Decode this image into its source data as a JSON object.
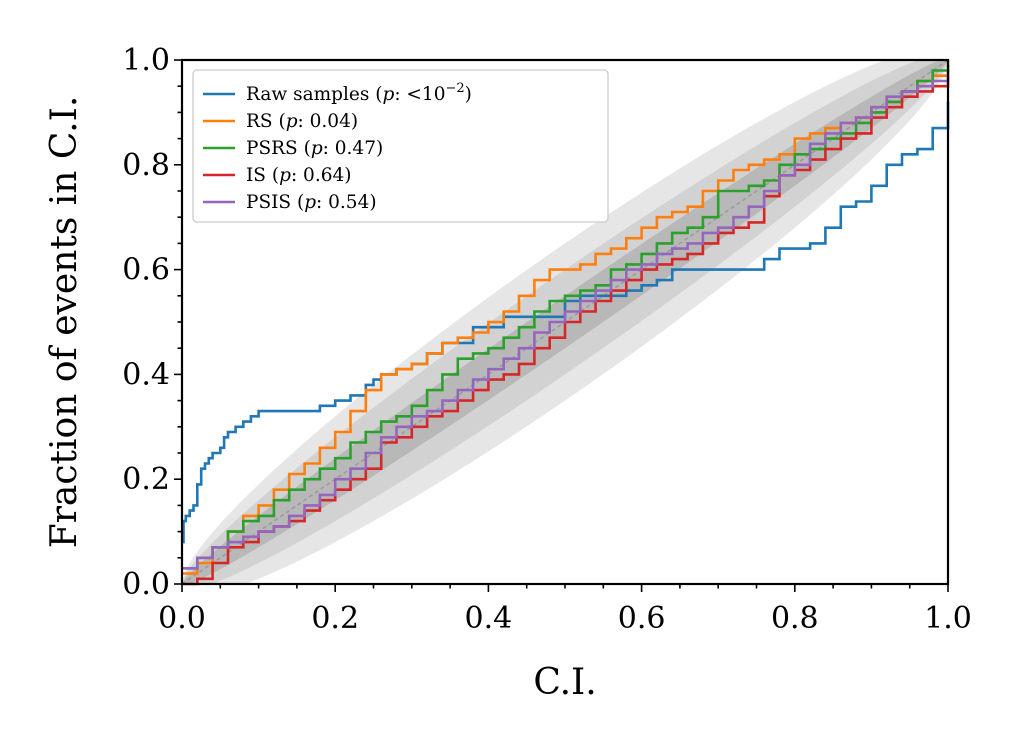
{
  "chart_data": {
    "type": "line",
    "title": "",
    "xlabel": "C.I.",
    "ylabel": "Fraction of events in C.I.",
    "xlim": [
      0,
      1
    ],
    "ylim": [
      0,
      1
    ],
    "xticks": [
      "0.0",
      "0.2",
      "0.4",
      "0.6",
      "0.8",
      "1.0"
    ],
    "yticks": [
      "0.0",
      "0.2",
      "0.4",
      "0.6",
      "0.8",
      "1.0"
    ],
    "legend_position": "top-left",
    "confidence_bands": "grey shaded 1σ/2σ/3σ bands around diagonal",
    "series": [
      {
        "name": "Raw samples (p: <10^-2)",
        "legend_prefix": "Raw samples (",
        "legend_p": "p",
        "legend_mid": ": <10",
        "legend_sup": "−2",
        "legend_suffix": ")",
        "color": "#1f77b4",
        "x": [
          0,
          0.002,
          0.005,
          0.01,
          0.015,
          0.02,
          0.025,
          0.03,
          0.035,
          0.04,
          0.05,
          0.055,
          0.06,
          0.07,
          0.08,
          0.09,
          0.1,
          0.11,
          0.15,
          0.18,
          0.2,
          0.22,
          0.24,
          0.25,
          0.26,
          0.28,
          0.3,
          0.32,
          0.34,
          0.38,
          0.42,
          0.44,
          0.46,
          0.5,
          0.52,
          0.56,
          0.58,
          0.6,
          0.62,
          0.64,
          0.7,
          0.72,
          0.74,
          0.76,
          0.78,
          0.8,
          0.82,
          0.84,
          0.86,
          0.88,
          0.9,
          0.92,
          0.94,
          0.96,
          0.98,
          1.0
        ],
        "y": [
          0.08,
          0.12,
          0.13,
          0.14,
          0.15,
          0.19,
          0.22,
          0.23,
          0.24,
          0.25,
          0.26,
          0.28,
          0.29,
          0.3,
          0.31,
          0.32,
          0.33,
          0.33,
          0.33,
          0.34,
          0.35,
          0.36,
          0.38,
          0.39,
          0.4,
          0.41,
          0.42,
          0.44,
          0.46,
          0.49,
          0.51,
          0.51,
          0.51,
          0.54,
          0.55,
          0.55,
          0.56,
          0.57,
          0.58,
          0.6,
          0.6,
          0.6,
          0.6,
          0.62,
          0.64,
          0.64,
          0.65,
          0.68,
          0.72,
          0.73,
          0.76,
          0.8,
          0.82,
          0.83,
          0.87,
          0.92
        ]
      },
      {
        "name": "RS (p: 0.04)",
        "legend_prefix": "RS (",
        "legend_p": "p",
        "legend_mid": ": 0.04)",
        "legend_sup": "",
        "legend_suffix": "",
        "color": "#ff7f0e",
        "x": [
          0,
          0.02,
          0.04,
          0.06,
          0.08,
          0.1,
          0.12,
          0.14,
          0.16,
          0.18,
          0.2,
          0.22,
          0.24,
          0.26,
          0.28,
          0.3,
          0.32,
          0.34,
          0.36,
          0.38,
          0.4,
          0.42,
          0.44,
          0.46,
          0.48,
          0.5,
          0.52,
          0.54,
          0.56,
          0.58,
          0.6,
          0.62,
          0.64,
          0.66,
          0.68,
          0.7,
          0.72,
          0.74,
          0.76,
          0.78,
          0.8,
          0.82,
          0.84,
          0.86,
          0.88,
          0.9,
          0.92,
          0.94,
          0.96,
          0.98,
          1.0
        ],
        "y": [
          0.02,
          0.04,
          0.07,
          0.1,
          0.13,
          0.15,
          0.18,
          0.21,
          0.23,
          0.26,
          0.29,
          0.33,
          0.37,
          0.4,
          0.41,
          0.42,
          0.44,
          0.46,
          0.47,
          0.48,
          0.5,
          0.52,
          0.55,
          0.58,
          0.6,
          0.6,
          0.61,
          0.63,
          0.64,
          0.66,
          0.68,
          0.7,
          0.71,
          0.72,
          0.75,
          0.77,
          0.79,
          0.8,
          0.81,
          0.82,
          0.85,
          0.86,
          0.87,
          0.88,
          0.89,
          0.91,
          0.92,
          0.94,
          0.96,
          0.97,
          1.0
        ]
      },
      {
        "name": "PSRS (p: 0.47)",
        "legend_prefix": "PSRS (",
        "legend_p": "p",
        "legend_mid": ": 0.47)",
        "legend_sup": "",
        "legend_suffix": "",
        "color": "#2ca02c",
        "x": [
          0,
          0.02,
          0.04,
          0.06,
          0.08,
          0.1,
          0.12,
          0.14,
          0.16,
          0.18,
          0.2,
          0.22,
          0.24,
          0.26,
          0.28,
          0.3,
          0.32,
          0.34,
          0.36,
          0.38,
          0.4,
          0.42,
          0.44,
          0.46,
          0.48,
          0.5,
          0.52,
          0.54,
          0.56,
          0.58,
          0.6,
          0.62,
          0.64,
          0.66,
          0.68,
          0.7,
          0.72,
          0.74,
          0.76,
          0.78,
          0.8,
          0.82,
          0.84,
          0.86,
          0.88,
          0.9,
          0.92,
          0.94,
          0.96,
          0.98,
          1.0
        ],
        "y": [
          0.03,
          0.05,
          0.07,
          0.1,
          0.12,
          0.13,
          0.16,
          0.18,
          0.2,
          0.22,
          0.24,
          0.27,
          0.29,
          0.31,
          0.32,
          0.34,
          0.37,
          0.4,
          0.43,
          0.44,
          0.45,
          0.47,
          0.49,
          0.52,
          0.54,
          0.55,
          0.56,
          0.57,
          0.6,
          0.61,
          0.63,
          0.65,
          0.67,
          0.68,
          0.7,
          0.75,
          0.75,
          0.76,
          0.77,
          0.8,
          0.82,
          0.83,
          0.85,
          0.86,
          0.88,
          0.9,
          0.92,
          0.94,
          0.96,
          0.98,
          0.99
        ]
      },
      {
        "name": "IS (p: 0.64)",
        "legend_prefix": "IS (",
        "legend_p": "p",
        "legend_mid": ": 0.64)",
        "legend_sup": "",
        "legend_suffix": "",
        "color": "#d62728",
        "x": [
          0,
          0.02,
          0.04,
          0.06,
          0.08,
          0.1,
          0.12,
          0.14,
          0.16,
          0.18,
          0.2,
          0.22,
          0.24,
          0.26,
          0.28,
          0.3,
          0.32,
          0.34,
          0.36,
          0.38,
          0.4,
          0.42,
          0.44,
          0.46,
          0.48,
          0.5,
          0.52,
          0.54,
          0.56,
          0.58,
          0.6,
          0.62,
          0.64,
          0.66,
          0.68,
          0.7,
          0.72,
          0.74,
          0.76,
          0.78,
          0.8,
          0.82,
          0.84,
          0.86,
          0.88,
          0.9,
          0.92,
          0.94,
          0.96,
          0.98,
          1.0
        ],
        "y": [
          0.0,
          0.01,
          0.04,
          0.07,
          0.08,
          0.1,
          0.11,
          0.12,
          0.14,
          0.16,
          0.18,
          0.2,
          0.22,
          0.27,
          0.28,
          0.3,
          0.32,
          0.33,
          0.35,
          0.37,
          0.39,
          0.4,
          0.42,
          0.45,
          0.47,
          0.5,
          0.52,
          0.54,
          0.56,
          0.58,
          0.6,
          0.61,
          0.62,
          0.63,
          0.65,
          0.67,
          0.68,
          0.69,
          0.74,
          0.78,
          0.79,
          0.81,
          0.83,
          0.85,
          0.86,
          0.89,
          0.91,
          0.93,
          0.94,
          0.95,
          0.97
        ]
      },
      {
        "name": "PSIS (p: 0.54)",
        "legend_prefix": "PSIS (",
        "legend_p": "p",
        "legend_mid": ": 0.54)",
        "legend_sup": "",
        "legend_suffix": "",
        "color": "#9467bd",
        "x": [
          0,
          0.02,
          0.04,
          0.06,
          0.08,
          0.1,
          0.12,
          0.14,
          0.16,
          0.18,
          0.2,
          0.22,
          0.24,
          0.26,
          0.28,
          0.3,
          0.32,
          0.34,
          0.36,
          0.38,
          0.4,
          0.42,
          0.44,
          0.46,
          0.48,
          0.5,
          0.52,
          0.54,
          0.56,
          0.58,
          0.6,
          0.62,
          0.64,
          0.66,
          0.68,
          0.7,
          0.72,
          0.74,
          0.76,
          0.78,
          0.8,
          0.82,
          0.84,
          0.86,
          0.88,
          0.9,
          0.92,
          0.94,
          0.96,
          0.98,
          1.0
        ],
        "y": [
          0.03,
          0.05,
          0.07,
          0.08,
          0.09,
          0.1,
          0.11,
          0.13,
          0.15,
          0.17,
          0.2,
          0.22,
          0.25,
          0.28,
          0.3,
          0.32,
          0.33,
          0.35,
          0.37,
          0.39,
          0.41,
          0.43,
          0.45,
          0.48,
          0.5,
          0.52,
          0.54,
          0.56,
          0.58,
          0.6,
          0.61,
          0.63,
          0.64,
          0.65,
          0.67,
          0.68,
          0.7,
          0.72,
          0.75,
          0.78,
          0.8,
          0.84,
          0.86,
          0.88,
          0.89,
          0.91,
          0.93,
          0.94,
          0.95,
          0.96,
          0.98
        ]
      }
    ]
  }
}
